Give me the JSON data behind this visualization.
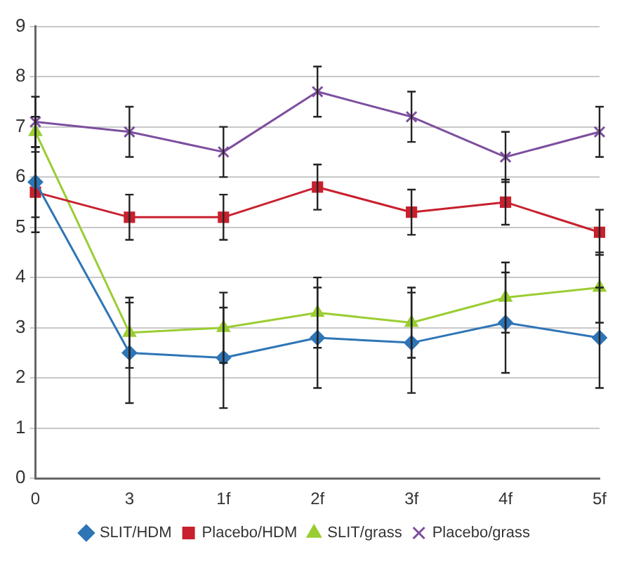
{
  "chart_data": {
    "type": "line",
    "categories": [
      "0",
      "3",
      "1f",
      "2f",
      "3f",
      "4f",
      "5f"
    ],
    "series": [
      {
        "name": "SLIT/HDM",
        "color": "#2e75b6",
        "marker": "diamond",
        "values": [
          5.9,
          2.5,
          2.4,
          2.8,
          2.7,
          3.1,
          2.8
        ],
        "errors": [
          0.7,
          1.0,
          1.0,
          1.0,
          1.0,
          1.0,
          1.0
        ]
      },
      {
        "name": "Placebo/HDM",
        "color": "#c8202e",
        "marker": "square",
        "values": [
          5.7,
          5.2,
          5.2,
          5.8,
          5.3,
          5.5,
          4.9
        ],
        "errors": [
          0.8,
          0.45,
          0.45,
          0.45,
          0.45,
          0.45,
          0.45
        ]
      },
      {
        "name": "SLIT/grass",
        "color": "#9acd32",
        "marker": "triangle",
        "values": [
          6.9,
          2.9,
          3.0,
          3.3,
          3.1,
          3.6,
          3.8
        ],
        "errors": [
          0.3,
          0.7,
          0.7,
          0.7,
          0.7,
          0.7,
          0.7
        ]
      },
      {
        "name": "Placebo/grass",
        "color": "#7d4f9f",
        "marker": "cross",
        "values": [
          7.1,
          6.9,
          6.5,
          7.7,
          7.2,
          6.4,
          6.9
        ],
        "errors": [
          0.5,
          0.5,
          0.5,
          0.5,
          0.5,
          0.5,
          0.5
        ]
      }
    ],
    "ylim": [
      0,
      9
    ],
    "yticks": [
      0,
      1,
      2,
      3,
      4,
      5,
      6,
      7,
      8,
      9
    ],
    "grid": "y",
    "legend": "bottom"
  }
}
